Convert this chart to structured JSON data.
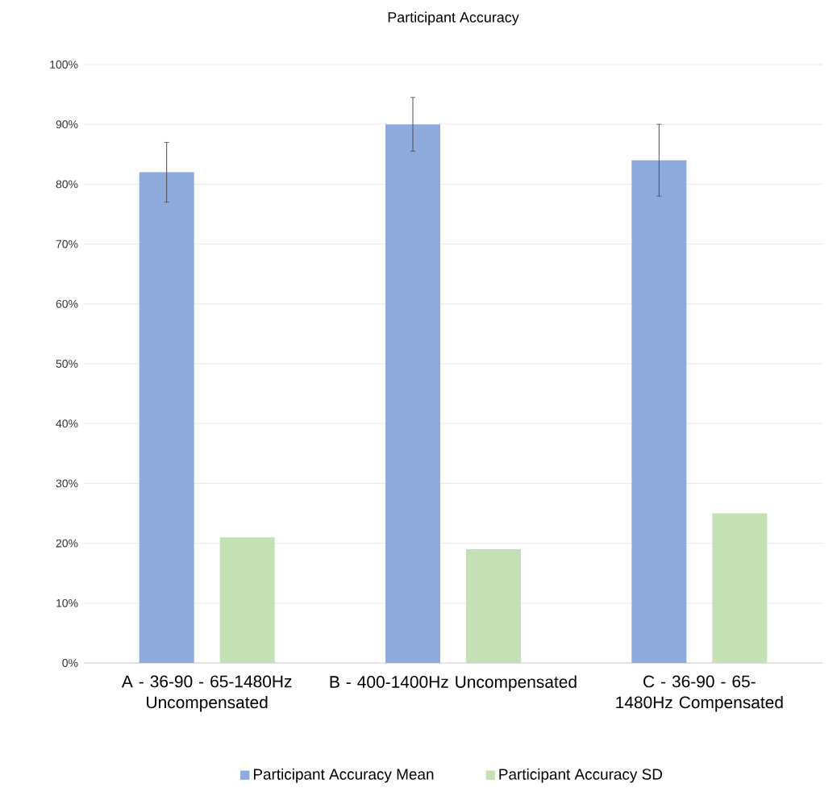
{
  "chart_data": {
    "type": "bar",
    "title": "Participant Accuracy",
    "categories": [
      "A - 36-90 - 65-1480Hz Uncompensated",
      "B - 400-1400Hz Uncompensated",
      "C - 36-90 - 65-1480Hz Compensated"
    ],
    "series": [
      {
        "name": "Participant Accuracy Mean",
        "color": "#8faadc",
        "values": [
          82,
          90,
          84
        ],
        "errors": [
          5,
          4.5,
          6
        ]
      },
      {
        "name": "Participant Accuracy SD",
        "color": "#c5e0b4",
        "values": [
          21,
          19,
          25
        ]
      }
    ],
    "ylim": [
      0,
      100
    ],
    "yticks": [
      {
        "value": 0,
        "label": "0%"
      },
      {
        "value": 10,
        "label": "10%"
      },
      {
        "value": 20,
        "label": "20%"
      },
      {
        "value": 30,
        "label": "30%"
      },
      {
        "value": 40,
        "label": "40%"
      },
      {
        "value": 50,
        "label": "50%"
      },
      {
        "value": 60,
        "label": "60%"
      },
      {
        "value": 70,
        "label": "70%"
      },
      {
        "value": 80,
        "label": "80%"
      },
      {
        "value": 90,
        "label": "90%"
      },
      {
        "value": 100,
        "label": "100%"
      }
    ],
    "grid": "y",
    "legend": "bottom"
  }
}
